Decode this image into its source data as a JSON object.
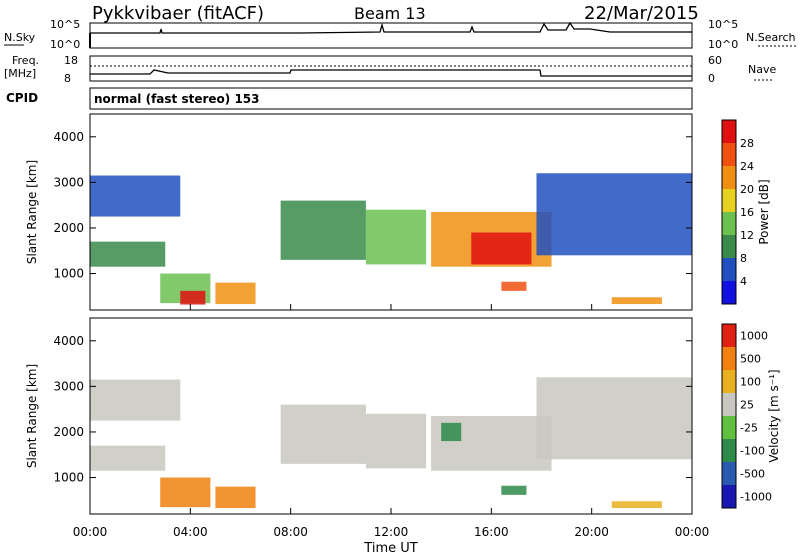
{
  "header": {
    "station": "Pykkvibaer (fitACF)",
    "beam": "Beam 13",
    "date": "22/Mar/2015"
  },
  "status_panels": {
    "nsky_label": "N.Sky",
    "nsearch_label": "N.Search",
    "freq_label_line1": "Freq.",
    "freq_label_line2": "[MHz]",
    "nave_label": "Nave",
    "cpid_label": "CPID",
    "cpid_text": "normal (fast stereo) 153",
    "nsky_ticks": [
      "10^5",
      "10^0"
    ],
    "nsearch_ticks": [
      "10^5",
      "10^0"
    ],
    "freq_ticks": [
      "18",
      "8"
    ],
    "nave_ticks": [
      "60",
      "0"
    ]
  },
  "chart_data": [
    {
      "type": "heatmap",
      "name": "power",
      "ylabel": "Slant Range [km]",
      "xlabel": "Time UT",
      "xlim": [
        0,
        24
      ],
      "ylim": [
        200,
        4500
      ],
      "y_ticks": [
        "1000",
        "2000",
        "3000",
        "4000"
      ],
      "x_ticks": [
        "00:00",
        "04:00",
        "08:00",
        "12:00",
        "16:00",
        "20:00",
        "00:00"
      ],
      "colorbar": {
        "label": "Power [dB]",
        "ticks": [
          "4",
          "8",
          "12",
          "16",
          "20",
          "24",
          "28"
        ],
        "colors": [
          "#1010e0",
          "#2050c0",
          "#3a8a4a",
          "#6bc050",
          "#e8d020",
          "#f09010",
          "#f05010",
          "#e01010"
        ]
      },
      "regions": [
        {
          "t0": 0.0,
          "t1": 3.6,
          "r0": 2250,
          "r1": 3150,
          "level": 1
        },
        {
          "t0": 0.0,
          "t1": 3.0,
          "r0": 1150,
          "r1": 1700,
          "level": 2
        },
        {
          "t0": 2.8,
          "t1": 4.8,
          "r0": 350,
          "r1": 1000,
          "level": 3
        },
        {
          "t0": 3.6,
          "t1": 4.6,
          "r0": 320,
          "r1": 620,
          "level": 7
        },
        {
          "t0": 5.0,
          "t1": 6.6,
          "r0": 330,
          "r1": 800,
          "level": 5
        },
        {
          "t0": 7.6,
          "t1": 11.0,
          "r0": 1300,
          "r1": 2600,
          "level": 2
        },
        {
          "t0": 11.0,
          "t1": 13.4,
          "r0": 1200,
          "r1": 2400,
          "level": 3
        },
        {
          "t0": 13.6,
          "t1": 18.4,
          "r0": 1150,
          "r1": 2350,
          "level": 5
        },
        {
          "t0": 15.2,
          "t1": 17.6,
          "r0": 1200,
          "r1": 1900,
          "level": 7
        },
        {
          "t0": 17.8,
          "t1": 24.0,
          "r0": 1400,
          "r1": 3200,
          "level": 1
        },
        {
          "t0": 16.4,
          "t1": 17.4,
          "r0": 620,
          "r1": 820,
          "level": 6
        },
        {
          "t0": 20.8,
          "t1": 22.8,
          "r0": 330,
          "r1": 480,
          "level": 5
        }
      ]
    },
    {
      "type": "heatmap",
      "name": "velocity",
      "ylabel": "Slant Range [km]",
      "xlabel": "Time UT",
      "xlim": [
        0,
        24
      ],
      "ylim": [
        200,
        4500
      ],
      "y_ticks": [
        "1000",
        "2000",
        "3000",
        "4000"
      ],
      "x_ticks": [
        "00:00",
        "04:00",
        "08:00",
        "12:00",
        "16:00",
        "20:00",
        "00:00"
      ],
      "colorbar": {
        "label": "Velocity [m s⁻¹]",
        "ticks": [
          "1000",
          "500",
          "100",
          "25",
          "-25",
          "-100",
          "-500",
          "-1000"
        ],
        "colors": [
          "#1818b0",
          "#2a5ab0",
          "#2e8a4a",
          "#62c040",
          "#c8c8c0",
          "#e8b020",
          "#f08010",
          "#e02010"
        ]
      },
      "regions": [
        {
          "t0": 0.0,
          "t1": 3.6,
          "r0": 2250,
          "r1": 3150,
          "level": 4
        },
        {
          "t0": 0.0,
          "t1": 3.0,
          "r0": 1150,
          "r1": 1700,
          "level": 4
        },
        {
          "t0": 2.8,
          "t1": 4.8,
          "r0": 350,
          "r1": 1000,
          "level": 6
        },
        {
          "t0": 5.0,
          "t1": 6.6,
          "r0": 330,
          "r1": 800,
          "level": 6
        },
        {
          "t0": 7.6,
          "t1": 11.0,
          "r0": 1300,
          "r1": 2600,
          "level": 4
        },
        {
          "t0": 11.0,
          "t1": 13.4,
          "r0": 1200,
          "r1": 2400,
          "level": 4
        },
        {
          "t0": 13.6,
          "t1": 18.4,
          "r0": 1150,
          "r1": 2350,
          "level": 4
        },
        {
          "t0": 17.8,
          "t1": 24.0,
          "r0": 1400,
          "r1": 3200,
          "level": 4
        },
        {
          "t0": 16.4,
          "t1": 17.4,
          "r0": 620,
          "r1": 820,
          "level": 2
        },
        {
          "t0": 14.0,
          "t1": 14.8,
          "r0": 1800,
          "r1": 2200,
          "level": 2
        },
        {
          "t0": 20.8,
          "t1": 22.8,
          "r0": 330,
          "r1": 480,
          "level": 5
        }
      ]
    }
  ]
}
